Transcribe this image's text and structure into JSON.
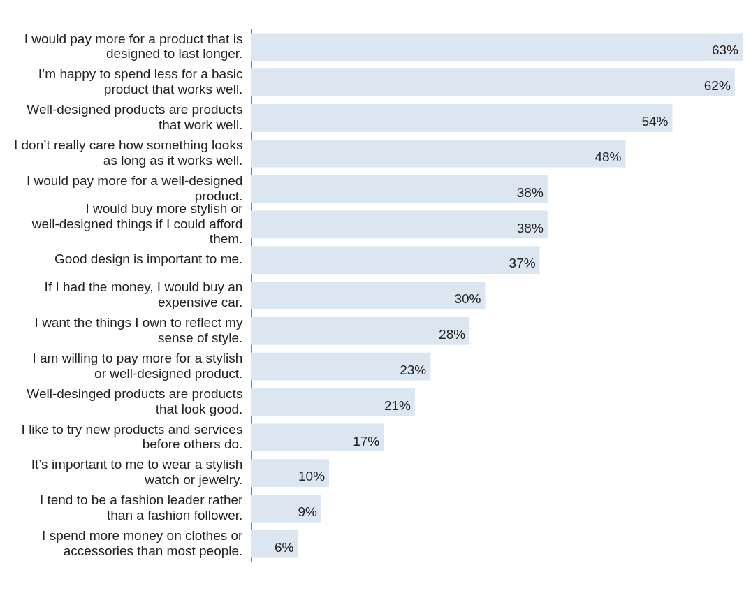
{
  "chart_data": {
    "type": "bar",
    "orientation": "horizontal",
    "categories": [
      "I would pay more for a product that is designed to last longer.",
      "I’m happy to spend less for a basic product that works well.",
      "Well-designed products are products that work well.",
      "I don’t really care how something looks as long as it works well.",
      "I would pay more for a well-designed product.",
      "I would buy more stylish or well-designed things if I could afford them.",
      "Good design is important to me.",
      "If I had the money, I would buy an expensive car.",
      "I want the things I own to reflect my sense of style.",
      "I am willing to pay more for a stylish or well-designed product.",
      "Well-desinged products are products that look good.",
      "I like to try new products and services before others do.",
      "It’s important to me to wear a stylish watch or jewelry.",
      "I tend to be a fashion leader rather than a fashion follower.",
      "I spend more money on clothes or accessories than most people."
    ],
    "values": [
      63,
      62,
      54,
      48,
      38,
      38,
      37,
      30,
      28,
      23,
      21,
      17,
      10,
      9,
      6
    ],
    "value_labels": [
      "63%",
      "62%",
      "54%",
      "48%",
      "38%",
      "38%",
      "37%",
      "30%",
      "28%",
      "23%",
      "21%",
      "17%",
      "10%",
      "9%",
      "6%"
    ],
    "color": "#dce6f1",
    "grid": false,
    "legend": false
  }
}
